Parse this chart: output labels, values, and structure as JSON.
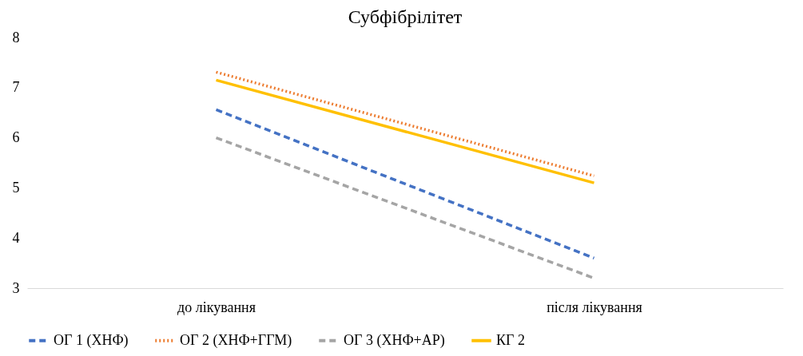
{
  "chart_data": {
    "type": "line",
    "title": "Субфібрілітет",
    "categories": [
      "до лікування",
      "після лікування"
    ],
    "series": [
      {
        "name": "ОГ 1 (ХНФ)",
        "color": "#4472c4",
        "line_style": "dashed",
        "values": [
          6.56,
          3.6
        ]
      },
      {
        "name": "ОГ 2 (ХНФ+ГГМ)",
        "color": "#ed7d31",
        "line_style": "dotted",
        "values": [
          7.31,
          5.24
        ]
      },
      {
        "name": "ОГ 3 (ХНФ+АР)",
        "color": "#a5a5a5",
        "line_style": "dashed",
        "values": [
          6.0,
          3.2
        ]
      },
      {
        "name": "КГ 2",
        "color": "#ffc000",
        "line_style": "solid",
        "values": [
          7.15,
          5.1
        ]
      }
    ],
    "ylim": [
      3,
      8
    ],
    "yticks": [
      3,
      4,
      5,
      6,
      7,
      8
    ],
    "grid": false,
    "legend": "bottom",
    "marker": "none"
  }
}
